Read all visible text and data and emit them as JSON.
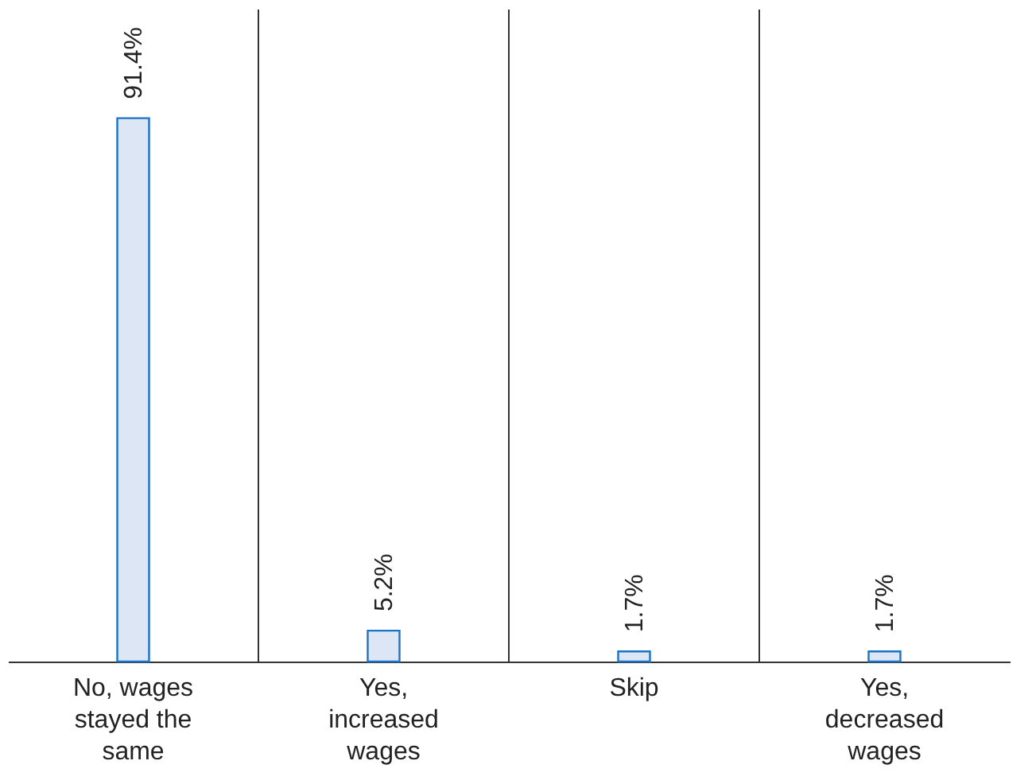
{
  "chart_data": {
    "type": "bar",
    "categories": [
      "No, wages stayed the same",
      "Yes, increased wages",
      "Skip",
      "Yes, decreased wages"
    ],
    "values": [
      91.4,
      5.2,
      1.7,
      1.7
    ],
    "value_labels": [
      "91.4%",
      "5.2%",
      "1.7%",
      "1.7%"
    ],
    "color": "#dce6f4",
    "grid": "x"
  }
}
